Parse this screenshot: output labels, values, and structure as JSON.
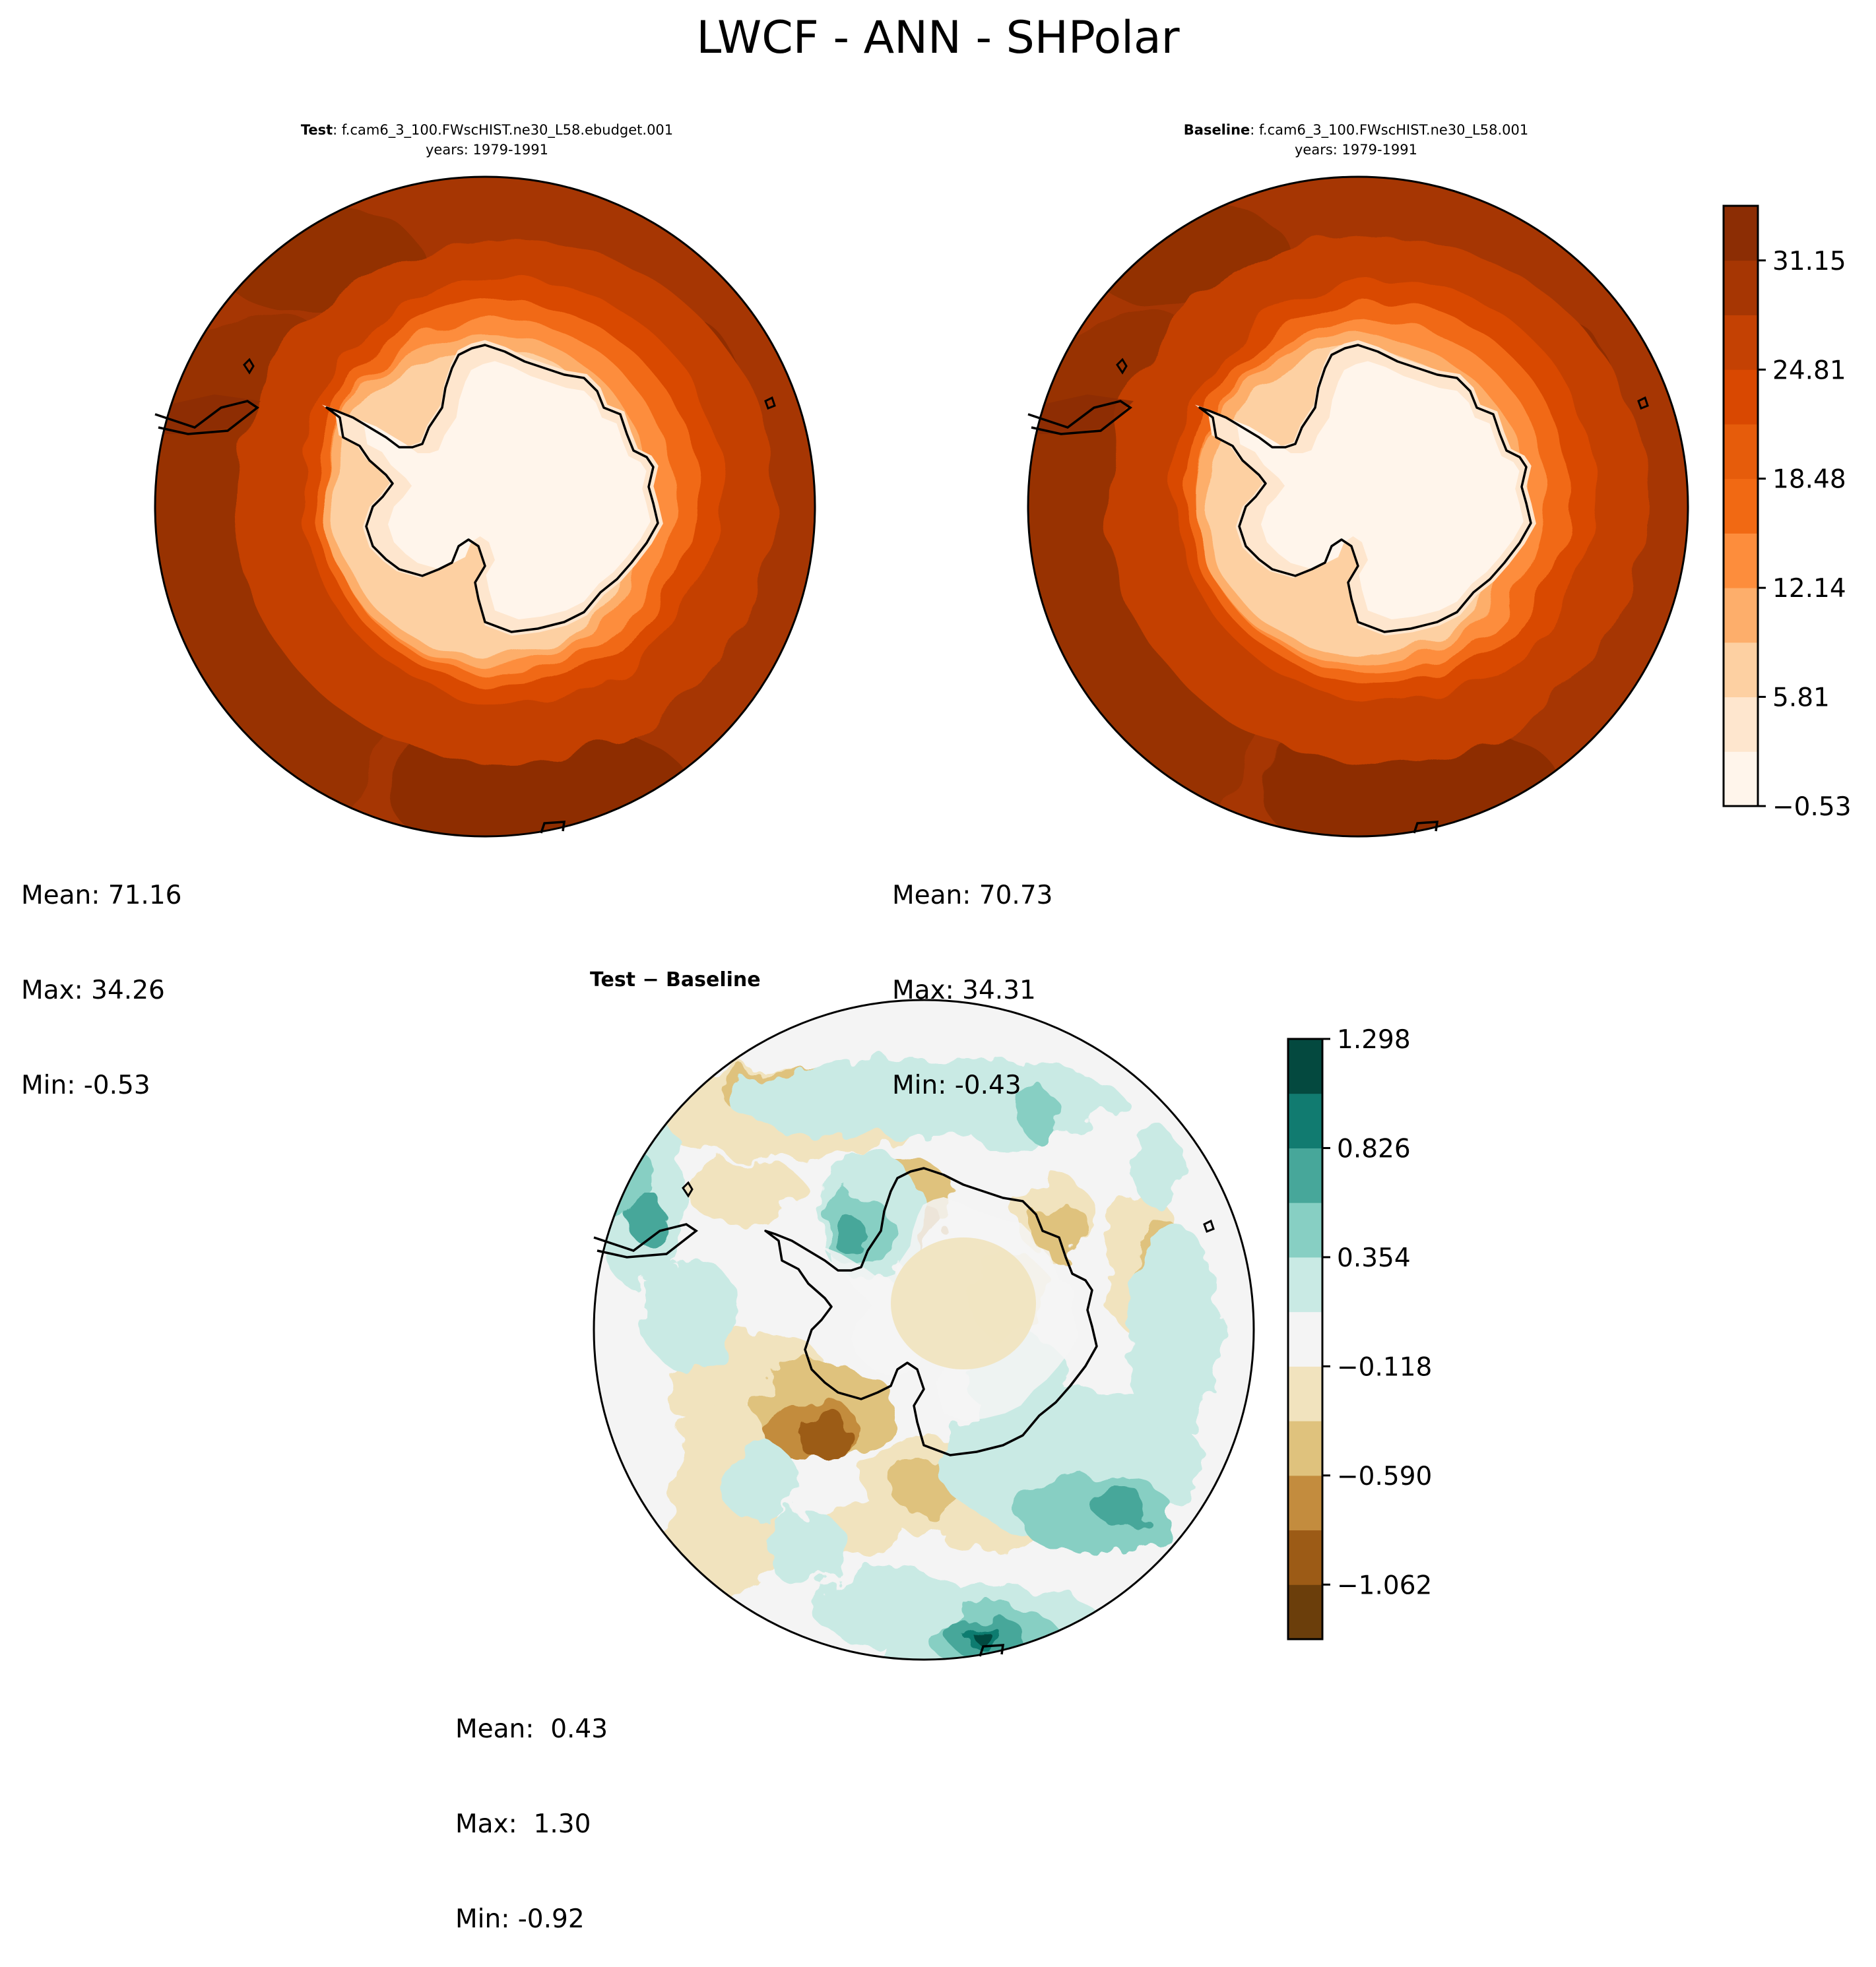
{
  "title": "LWCF - ANN - SHPolar",
  "panels": {
    "test": {
      "label": "Test",
      "case": "f.cam6_3_100.FWscHIST.ne30_L58.ebudget.001",
      "years": "years: 1979-1991",
      "stats": [
        "Mean: 71.16",
        "Max: 34.26",
        "Min: -0.53"
      ]
    },
    "baseline": {
      "label": "Baseline",
      "case": "f.cam6_3_100.FWscHIST.ne30_L58.001",
      "years": "years: 1979-1991",
      "stats": [
        "Mean: 70.73",
        "Max: 34.31",
        "Min: -0.43"
      ]
    },
    "diff": {
      "label": "Test − Baseline",
      "stats": [
        "Mean:  0.43",
        "Max:  1.30",
        "Min: -0.92"
      ]
    }
  },
  "chart_data": [
    {
      "type": "heatmap",
      "projection": "south polar stereographic",
      "panel": "test",
      "colormap": "Oranges",
      "levels": [
        -0.53,
        2.64,
        5.81,
        8.98,
        12.14,
        15.31,
        18.48,
        21.65,
        24.81,
        27.98,
        31.15,
        34.32
      ],
      "colorbar_ticks": [
        "−0.53",
        "5.81",
        "12.14",
        "18.48",
        "24.81",
        "31.15"
      ],
      "colors": [
        "#fff5eb",
        "#fee6ce",
        "#fdd0a2",
        "#fdae6b",
        "#fd8d3c",
        "#f16913",
        "#e65c0b",
        "#d94801",
        "#c44103",
        "#a63603",
        "#8c2d04"
      ],
      "mean": 71.16,
      "max": 34.26,
      "min": -0.53
    },
    {
      "type": "heatmap",
      "projection": "south polar stereographic",
      "panel": "baseline",
      "colormap": "Oranges",
      "levels": [
        -0.53,
        2.64,
        5.81,
        8.98,
        12.14,
        15.31,
        18.48,
        21.65,
        24.81,
        27.98,
        31.15,
        34.32
      ],
      "colorbar_ticks": [
        "−0.53",
        "5.81",
        "12.14",
        "18.48",
        "24.81",
        "31.15"
      ],
      "colors": [
        "#fff5eb",
        "#fee6ce",
        "#fdd0a2",
        "#fdae6b",
        "#fd8d3c",
        "#f16913",
        "#e65c0b",
        "#d94801",
        "#c44103",
        "#a63603",
        "#8c2d04"
      ],
      "mean": 70.73,
      "max": 34.31,
      "min": -0.43
    },
    {
      "type": "heatmap",
      "projection": "south polar stereographic",
      "panel": "diff",
      "colormap": "BrBG",
      "levels": [
        -1.298,
        -1.062,
        -0.826,
        -0.59,
        -0.354,
        -0.118,
        0.118,
        0.354,
        0.59,
        0.826,
        1.062,
        1.298
      ],
      "colorbar_ticks": [
        "−1.062",
        "−0.590",
        "−0.118",
        "0.354",
        "0.826",
        "1.298"
      ],
      "colors": [
        "#6b3e0b",
        "#9c5b16",
        "#c38c3e",
        "#dfc27d",
        "#f1e3be",
        "#f4f4f4",
        "#c9eae4",
        "#87cfc3",
        "#47a79a",
        "#117b70",
        "#04493f"
      ],
      "mean": 0.43,
      "max": 1.3,
      "min": -0.92
    }
  ]
}
